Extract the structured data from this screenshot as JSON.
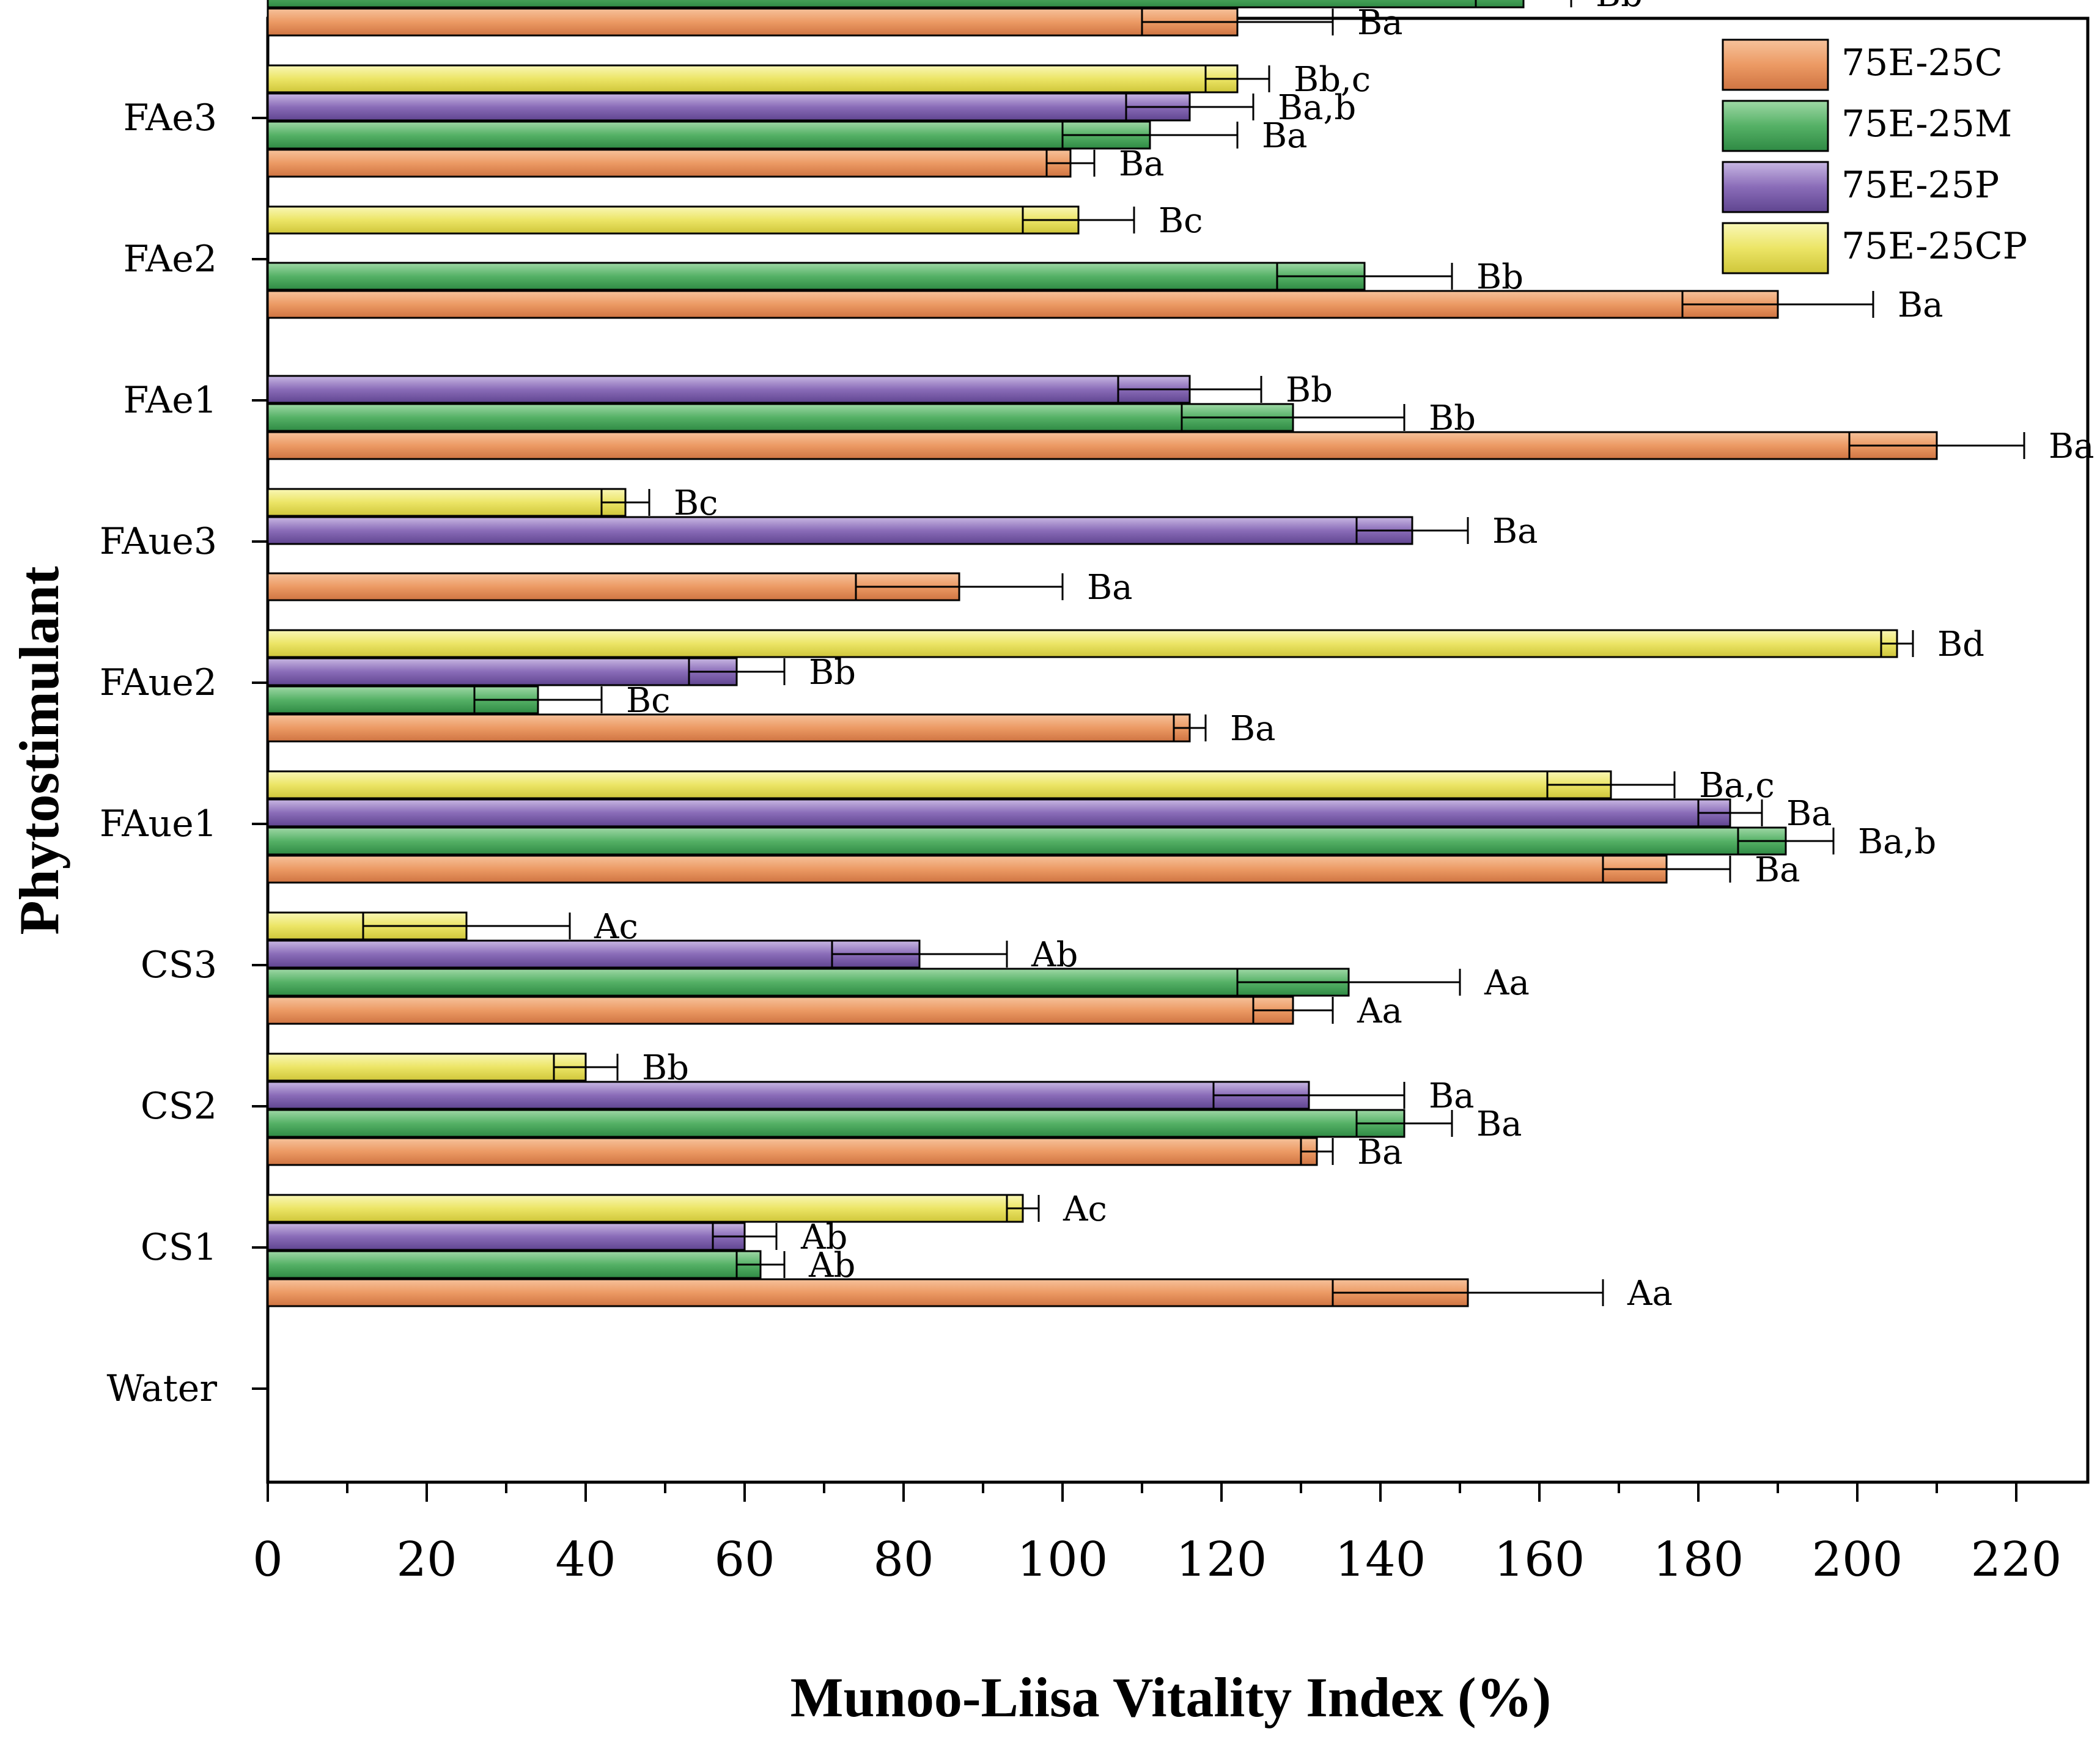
{
  "chart_data": {
    "type": "bar",
    "orientation": "horizontal",
    "xlabel": "Munoo-Liisa Vitality Index (%)",
    "ylabel": "Phytostimulant",
    "xlim": [
      0,
      230
    ],
    "x_ticks": [
      0,
      20,
      40,
      60,
      80,
      100,
      120,
      140,
      160,
      180,
      200,
      220
    ],
    "x_tick_labels": [
      "0",
      "20",
      "40",
      "60",
      "80",
      "100",
      "120",
      "140",
      "160",
      "180",
      "200",
      "220"
    ],
    "legend_position": "top-right",
    "legend": [
      {
        "key": "C",
        "label": "75E-25C",
        "color": "#e8945e"
      },
      {
        "key": "M",
        "label": "75E-25M",
        "color": "#4fab63"
      },
      {
        "key": "P",
        "label": "75E-25P",
        "color": "#7a5ea8"
      },
      {
        "key": "CP",
        "label": "75E-25CP",
        "color": "#e8e35a"
      }
    ],
    "categories": [
      "FAe3",
      "FAe2",
      "FAe1",
      "FAue3",
      "FAue2",
      "FAue1",
      "CS3",
      "CS2",
      "CS1",
      "Water"
    ],
    "groups": [
      {
        "category": "FAe3",
        "bars": [
          {
            "series": "P",
            "value": 134,
            "error": 15,
            "label": "Ba"
          },
          {
            "series": "M",
            "value": 158,
            "error": 6,
            "label": "Bb"
          },
          {
            "series": "C",
            "value": 122,
            "error": 12,
            "label": "Ba"
          }
        ]
      },
      {
        "category": "FAe2",
        "bars": [
          {
            "series": "CP",
            "value": 122,
            "error": 4,
            "label": "Bb,c"
          },
          {
            "series": "P",
            "value": 116,
            "error": 8,
            "label": "Ba,b"
          },
          {
            "series": "M",
            "value": 111,
            "error": 11,
            "label": "Ba"
          },
          {
            "series": "C",
            "value": 101,
            "error": 3,
            "label": "Ba"
          }
        ]
      },
      {
        "category": "FAe1",
        "bars": [
          {
            "series": "CP",
            "value": 102,
            "error": 7,
            "label": "Bc"
          },
          {
            "series": "M",
            "value": 138,
            "error": 11,
            "label": "Bb"
          },
          {
            "series": "C",
            "value": 190,
            "error": 12,
            "label": "Ba"
          }
        ]
      },
      {
        "category": "FAue3",
        "bars": [
          {
            "series": "P",
            "value": 116,
            "error": 9,
            "label": "Bb"
          },
          {
            "series": "M",
            "value": 129,
            "error": 14,
            "label": "Bb"
          },
          {
            "series": "C",
            "value": 210,
            "error": 11,
            "label": "Ba"
          }
        ]
      },
      {
        "category": "FAue2",
        "bars": [
          {
            "series": "CP",
            "value": 45,
            "error": 3,
            "label": "Bc"
          },
          {
            "series": "P",
            "value": 144,
            "error": 7,
            "label": "Ba"
          },
          {
            "series": "C",
            "value": 87,
            "error": 13,
            "label": "Ba"
          }
        ]
      },
      {
        "category": "FAue1",
        "bars": [
          {
            "series": "CP",
            "value": 205,
            "error": 2,
            "label": "Bd"
          },
          {
            "series": "P",
            "value": 59,
            "error": 6,
            "label": "Bb"
          },
          {
            "series": "M",
            "value": 34,
            "error": 8,
            "label": "Bc"
          },
          {
            "series": "C",
            "value": 116,
            "error": 2,
            "label": "Ba"
          }
        ]
      },
      {
        "category": "CS3",
        "bars": [
          {
            "series": "CP",
            "value": 169,
            "error": 8,
            "label": "Ba,c"
          },
          {
            "series": "P",
            "value": 184,
            "error": 4,
            "label": "Ba"
          },
          {
            "series": "M",
            "value": 191,
            "error": 6,
            "label": "Ba,b"
          },
          {
            "series": "C",
            "value": 176,
            "error": 8,
            "label": "Ba"
          }
        ]
      },
      {
        "category": "CS2",
        "bars": [
          {
            "series": "CP",
            "value": 25,
            "error": 13,
            "label": "Ac"
          },
          {
            "series": "P",
            "value": 82,
            "error": 11,
            "label": "Ab"
          },
          {
            "series": "M",
            "value": 136,
            "error": 14,
            "label": "Aa"
          },
          {
            "series": "C",
            "value": 129,
            "error": 5,
            "label": "Aa"
          }
        ]
      },
      {
        "category": "CS1",
        "bars": [
          {
            "series": "CP",
            "value": 40,
            "error": 4,
            "label": "Bb"
          },
          {
            "series": "P",
            "value": 131,
            "error": 12,
            "label": "Ba"
          },
          {
            "series": "M",
            "value": 143,
            "error": 6,
            "label": "Ba"
          },
          {
            "series": "C",
            "value": 132,
            "error": 2,
            "label": "Ba"
          }
        ]
      },
      {
        "category": "Water",
        "bars": [
          {
            "series": "CP",
            "value": 95,
            "error": 2,
            "label": "Ac"
          },
          {
            "series": "P",
            "value": 60,
            "error": 4,
            "label": "Ab"
          },
          {
            "series": "M",
            "value": 62,
            "error": 3,
            "label": "Ab"
          },
          {
            "series": "C",
            "value": 151,
            "error": 17,
            "label": "Aa"
          }
        ]
      }
    ]
  }
}
